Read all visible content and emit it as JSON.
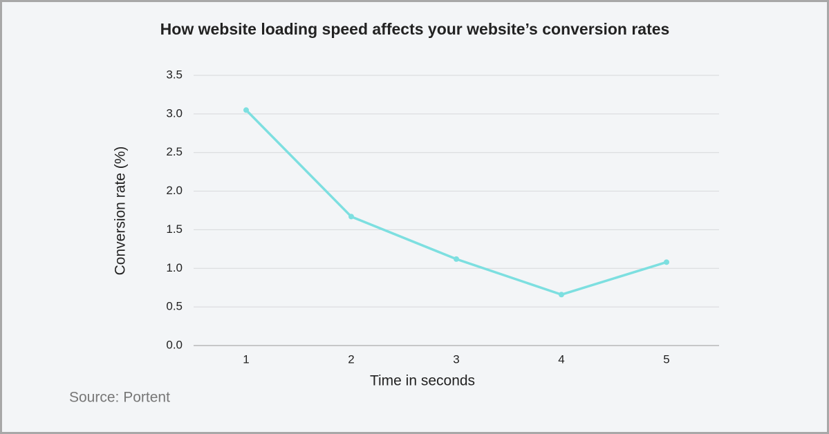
{
  "chart_data": {
    "type": "line",
    "title": "How website loading speed affects your website’s conversion rates",
    "x_label": "Time in seconds",
    "y_label": "Conversion rate (%)",
    "source": "Source: Portent",
    "x": [
      1,
      2,
      3,
      4,
      5
    ],
    "values": [
      3.05,
      1.67,
      1.12,
      0.66,
      1.08
    ],
    "color": "#7ddfe0",
    "xlim": [
      0.5,
      5.5
    ],
    "xticks": [
      1,
      2,
      3,
      4,
      5
    ],
    "ylim": [
      0,
      3.5
    ],
    "yticks": [
      {
        "value": 0,
        "label": "0.0"
      },
      0.5,
      {
        "value": 1,
        "label": "1.0"
      },
      1.5,
      {
        "value": 2,
        "label": "2.0"
      },
      2.5,
      {
        "value": 3,
        "label": "3.0"
      },
      3.5
    ],
    "grid": true
  }
}
